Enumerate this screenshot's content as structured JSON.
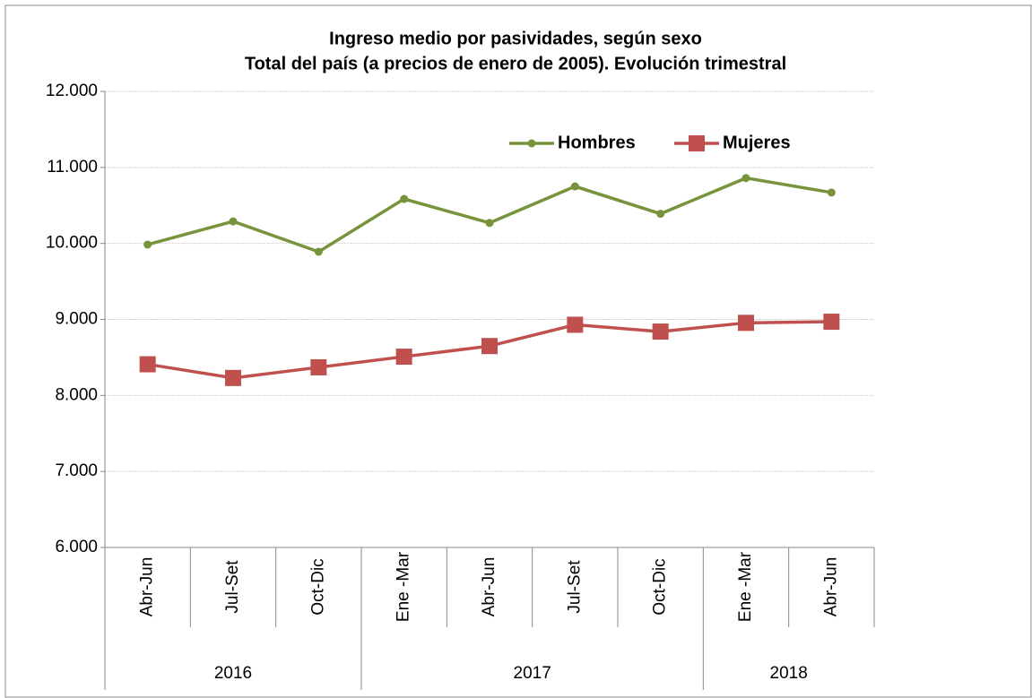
{
  "chart_data": {
    "type": "line",
    "title": [
      "Ingreso medio por pasividades, según sexo",
      "Total del país (a precios de enero de 2005). Evolución trimestral"
    ],
    "categories": [
      "Abr-Jun",
      "Jul-Set",
      "Oct-Dic",
      "Ene -Mar",
      "Abr-Jun",
      "Jul-Set",
      "Oct-Dic",
      "Ene -Mar",
      "Abr-Jun"
    ],
    "groups": [
      {
        "label": "2016",
        "from": 0,
        "to": 2
      },
      {
        "label": "2017",
        "from": 3,
        "to": 6
      },
      {
        "label": "2018",
        "from": 7,
        "to": 8
      }
    ],
    "series": [
      {
        "name": "Hombres",
        "color": "#77933c",
        "marker": "circle",
        "values": [
          9985,
          10290,
          9890,
          10585,
          10270,
          10750,
          10390,
          10860,
          10670
        ]
      },
      {
        "name": "Mujeres",
        "color": "#c0504d",
        "marker": "square",
        "values": [
          8410,
          8230,
          8370,
          8510,
          8650,
          8930,
          8840,
          8955,
          8970
        ]
      }
    ],
    "ylim": [
      6000,
      12000
    ],
    "yticks": [
      {
        "value": 6000,
        "label": "6.000"
      },
      {
        "value": 7000,
        "label": "7.000"
      },
      {
        "value": 8000,
        "label": "8.000"
      },
      {
        "value": 9000,
        "label": "9.000"
      },
      {
        "value": 10000,
        "label": "10.000"
      },
      {
        "value": 11000,
        "label": "11.000"
      },
      {
        "value": 12000,
        "label": "12.000"
      }
    ],
    "grid": true,
    "legend": "top-right"
  }
}
